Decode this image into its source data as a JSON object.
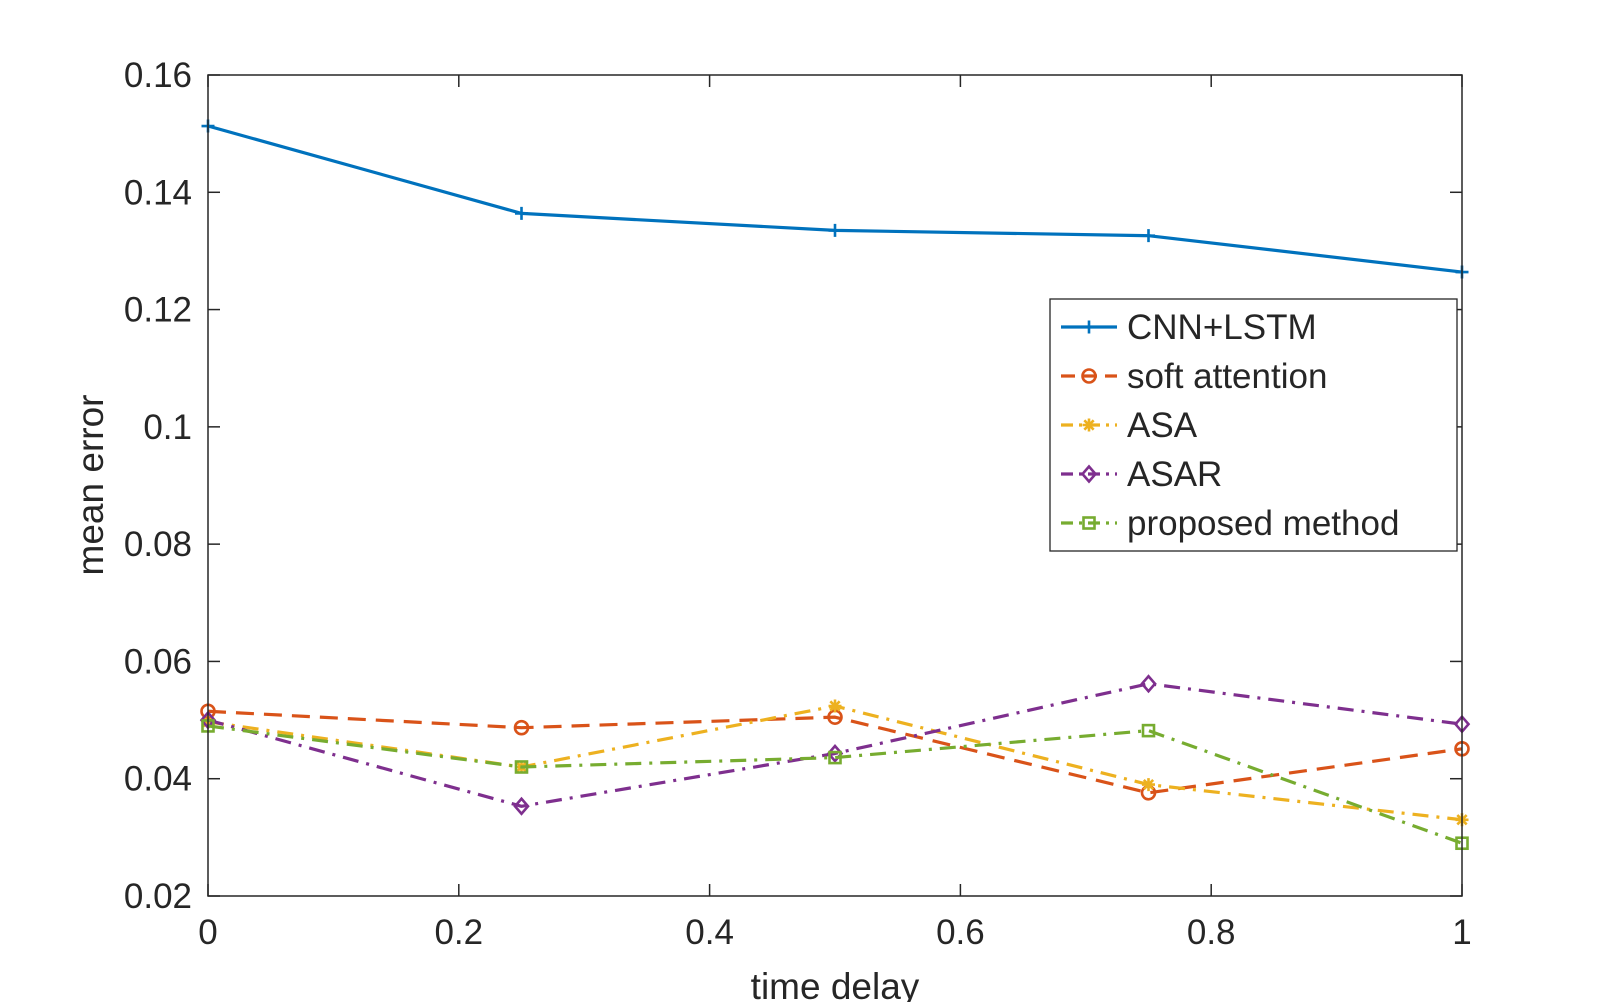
{
  "chart_data": {
    "type": "line",
    "title": "",
    "xlabel": "time delay",
    "ylabel": "mean error",
    "xlim": [
      0,
      1
    ],
    "ylim": [
      0.02,
      0.16
    ],
    "xticks": [
      0,
      0.2,
      0.4,
      0.6,
      0.8,
      1
    ],
    "xtick_labels": [
      "0",
      "0.2",
      "0.4",
      "0.6",
      "0.8",
      "1"
    ],
    "yticks": [
      0.02,
      0.04,
      0.06,
      0.08,
      0.1,
      0.12,
      0.14,
      0.16
    ],
    "ytick_labels": [
      "0.02",
      "0.04",
      "0.06",
      "0.08",
      "0.1",
      "0.12",
      "0.14",
      "0.16"
    ],
    "grid": false,
    "legend_position": "right",
    "x": [
      0,
      0.25,
      0.5,
      0.75,
      1
    ],
    "series": [
      {
        "name": "CNN+LSTM",
        "values": [
          0.1513,
          0.1364,
          0.1335,
          0.1326,
          0.1264
        ],
        "color": "#0072BD",
        "line_style": "solid",
        "marker": "plus"
      },
      {
        "name": "soft attention",
        "values": [
          0.0515,
          0.0487,
          0.0505,
          0.0376,
          0.0451
        ],
        "color": "#D95319",
        "line_style": "dashed",
        "marker": "circle"
      },
      {
        "name": "ASA",
        "values": [
          0.0497,
          0.042,
          0.0524,
          0.039,
          0.033
        ],
        "color": "#EDB120",
        "line_style": "dash-dot",
        "marker": "asterisk"
      },
      {
        "name": "ASAR",
        "values": [
          0.05,
          0.0353,
          0.0443,
          0.0562,
          0.0493
        ],
        "color": "#7E2F8E",
        "line_style": "dash-dot",
        "marker": "diamond"
      },
      {
        "name": "proposed method",
        "values": [
          0.049,
          0.042,
          0.0436,
          0.0482,
          0.029
        ],
        "color": "#77AC30",
        "line_style": "dash-dot",
        "marker": "square"
      }
    ]
  }
}
